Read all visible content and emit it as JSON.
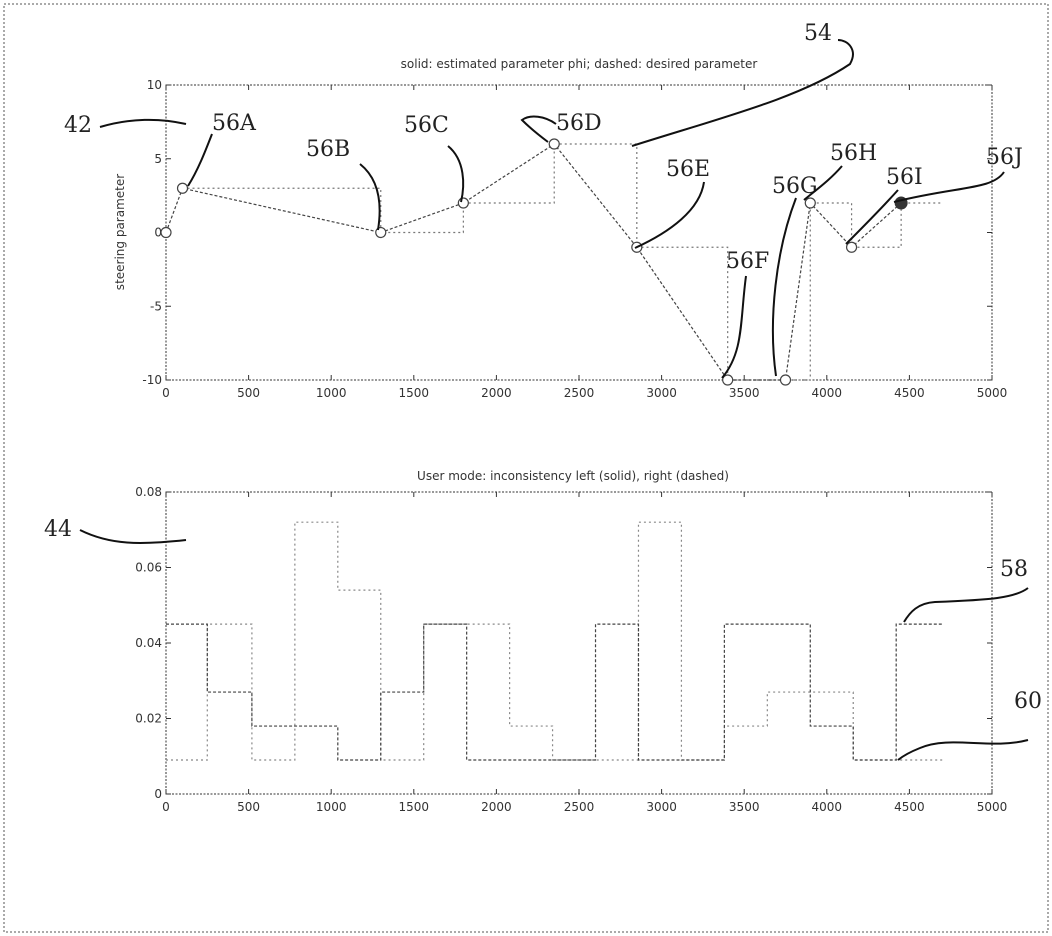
{
  "chart_data": [
    {
      "type": "line",
      "title": "solid: estimated parameter phi; dashed: desired parameter",
      "ylabel": "steering parameter",
      "xlim": [
        0,
        5000
      ],
      "ylim": [
        -10,
        10
      ],
      "xticks": [
        0,
        500,
        1000,
        1500,
        2000,
        2500,
        3000,
        3500,
        4000,
        4500,
        5000
      ],
      "yticks": [
        -10,
        -5,
        0,
        5,
        10
      ],
      "series": [
        {
          "style": "solid",
          "points": [
            [
              0,
              0
            ],
            [
              100,
              3
            ],
            [
              1300,
              0
            ],
            [
              1800,
              2
            ],
            [
              2350,
              6
            ],
            [
              2850,
              -1
            ],
            [
              3400,
              -10
            ],
            [
              3750,
              -10
            ],
            [
              3900,
              2
            ],
            [
              4150,
              -1
            ],
            [
              4450,
              2
            ]
          ]
        },
        {
          "style": "dashed",
          "steps": [
            [
              100,
              3
            ],
            [
              1300,
              0
            ],
            [
              1800,
              2
            ],
            [
              2350,
              6
            ],
            [
              2850,
              -1
            ],
            [
              3400,
              -10
            ],
            [
              3900,
              2
            ],
            [
              4150,
              -1
            ],
            [
              4450,
              2
            ],
            [
              4700,
              2
            ]
          ]
        }
      ],
      "point_labels": [
        "56A",
        "56B",
        "56C",
        "56D",
        "56E",
        "56F",
        "56G",
        "56H",
        "56I",
        "56J"
      ],
      "ref_labels": [
        "42",
        "54"
      ]
    },
    {
      "type": "line",
      "title": "User mode: inconsistency left (solid), right (dashed)",
      "xlim": [
        0,
        5000
      ],
      "ylim": [
        0,
        0.08
      ],
      "xticks": [
        0,
        500,
        1000,
        1500,
        2000,
        2500,
        3000,
        3500,
        4000,
        4500,
        5000
      ],
      "yticks": [
        0,
        0.02,
        0.04,
        0.06,
        0.08
      ],
      "series": [
        {
          "style": "solid",
          "steps": [
            [
              0,
              0.045
            ],
            [
              250,
              0.027
            ],
            [
              520,
              0.018
            ],
            [
              780,
              0.018
            ],
            [
              1040,
              0.009
            ],
            [
              1300,
              0.027
            ],
            [
              1560,
              0.045
            ],
            [
              1820,
              0.009
            ],
            [
              2080,
              0.009
            ],
            [
              2340,
              0.009
            ],
            [
              2600,
              0.045
            ],
            [
              2860,
              0.009
            ],
            [
              3120,
              0.009
            ],
            [
              3380,
              0.045
            ],
            [
              3640,
              0.045
            ],
            [
              3900,
              0.018
            ],
            [
              4160,
              0.009
            ],
            [
              4420,
              0.045
            ],
            [
              4700,
              0.045
            ]
          ]
        },
        {
          "style": "dashed",
          "steps": [
            [
              0,
              0.009
            ],
            [
              250,
              0.045
            ],
            [
              520,
              0.009
            ],
            [
              780,
              0.072
            ],
            [
              1040,
              0.054
            ],
            [
              1300,
              0.009
            ],
            [
              1560,
              0.045
            ],
            [
              1820,
              0.045
            ],
            [
              2080,
              0.018
            ],
            [
              2340,
              0.009
            ],
            [
              2600,
              0.009
            ],
            [
              2860,
              0.072
            ],
            [
              3120,
              0.009
            ],
            [
              3380,
              0.018
            ],
            [
              3640,
              0.027
            ],
            [
              3900,
              0.027
            ],
            [
              4160,
              0.009
            ],
            [
              4420,
              0.009
            ],
            [
              4700,
              0.009
            ]
          ]
        }
      ],
      "ref_labels": [
        "44",
        "58",
        "60"
      ]
    }
  ]
}
